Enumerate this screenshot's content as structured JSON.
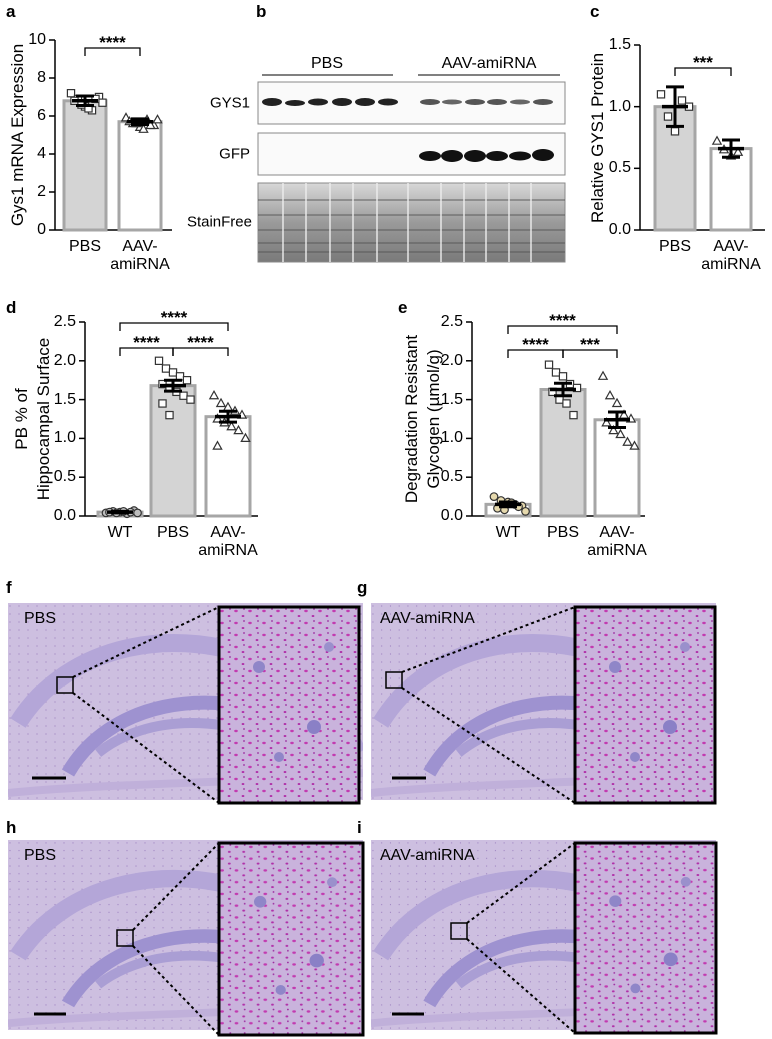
{
  "panels": [
    "a",
    "b",
    "c",
    "d",
    "e",
    "f",
    "g",
    "h",
    "i"
  ],
  "blot": {
    "groups": [
      "PBS",
      "AAV-amiRNA"
    ],
    "rows": [
      "GYS1",
      "GFP",
      "StainFree"
    ]
  },
  "image_labels": [
    "PBS",
    "AAV-amiRNA",
    "PBS",
    "AAV-amiRNA"
  ],
  "chart_data": [
    {
      "type": "bar",
      "ylabel": [
        "Gys1 mRNA Expression"
      ],
      "ylim": [
        0,
        10
      ],
      "yticks": [
        0,
        2,
        4,
        6,
        8,
        10
      ],
      "categories": [
        "PBS",
        "AAV-amiRNA"
      ],
      "values": [
        6.8,
        5.7
      ],
      "errors": [
        0.25,
        0.15
      ],
      "colors": [
        "#d4d4d4",
        "#ffffff"
      ],
      "edge_color": "#a6a6a6",
      "markers": [
        "square",
        "triangle"
      ],
      "point_fills": [
        "#ffffff",
        "#ffffff"
      ],
      "points": [
        [
          7.2,
          6.9,
          6.5,
          6.3,
          7.0,
          6.8,
          6.6,
          6.4,
          6.9,
          6.7
        ],
        [
          5.9,
          5.6,
          5.4,
          5.8,
          5.5,
          5.7,
          5.6,
          5.3,
          5.5,
          5.8
        ]
      ],
      "annotations": [
        "****"
      ]
    },
    {
      "type": "bar",
      "ylabel": [
        "Relative GYS1 Protein"
      ],
      "ylim": [
        0,
        1.5
      ],
      "yticks": [
        {
          "value": 0,
          "label": "0.0"
        },
        {
          "value": 0.5,
          "label": "0.5"
        },
        {
          "value": 1,
          "label": "1.0"
        },
        {
          "value": 1.5,
          "label": "1.5"
        }
      ],
      "categories": [
        "PBS",
        "AAV-amiRNA"
      ],
      "values": [
        1.0,
        0.66
      ],
      "errors": [
        0.16,
        0.07
      ],
      "colors": [
        "#d4d4d4",
        "#ffffff"
      ],
      "edge_color": "#a6a6a6",
      "markers": [
        "square",
        "triangle"
      ],
      "point_fills": [
        "#ffffff",
        "#ffffff"
      ],
      "points": [
        [
          1.1,
          0.92,
          0.8,
          1.05,
          1.0
        ],
        [
          0.72,
          0.65,
          0.6,
          0.63
        ]
      ],
      "annotations": [
        "***"
      ]
    },
    {
      "type": "bar",
      "ylabel": [
        "PB % of",
        "Hippocampal Surface"
      ],
      "ylim": [
        0,
        2.5
      ],
      "yticks": [
        {
          "value": 0,
          "label": "0.0"
        },
        {
          "value": 0.5,
          "label": "0.5"
        },
        {
          "value": 1,
          "label": "1.0"
        },
        {
          "value": 1.5,
          "label": "1.5"
        },
        {
          "value": 2,
          "label": "2.0"
        },
        {
          "value": 2.5,
          "label": "2.5"
        }
      ],
      "categories": [
        "WT",
        "PBS",
        "AAV-amiRNA"
      ],
      "values": [
        0.05,
        1.68,
        1.28
      ],
      "errors": [
        0.01,
        0.07,
        0.07
      ],
      "colors": [
        "#ffffff",
        "#d4d4d4",
        "#ffffff"
      ],
      "edge_color": "#a6a6a6",
      "markers": [
        "circle",
        "square",
        "triangle"
      ],
      "point_fills": [
        "#bdbdbd",
        "#ffffff",
        "#ffffff"
      ],
      "points": [
        [
          0.04,
          0.06,
          0.05,
          0.03,
          0.07,
          0.05,
          0.04,
          0.06,
          0.05,
          0.04
        ],
        [
          2.0,
          1.9,
          1.85,
          1.8,
          1.75,
          1.7,
          1.65,
          1.6,
          1.55,
          1.5,
          1.45,
          1.3
        ],
        [
          1.55,
          1.45,
          1.4,
          1.35,
          1.3,
          1.25,
          1.2,
          1.15,
          1.1,
          1.0,
          0.9
        ]
      ],
      "annotations": [
        "****",
        "****",
        "****"
      ]
    },
    {
      "type": "bar",
      "ylabel": [
        "Degradation Resistant",
        "Glycogen (µmol/g)"
      ],
      "ylim": [
        0,
        2.5
      ],
      "yticks": [
        {
          "value": 0,
          "label": "0.0"
        },
        {
          "value": 0.5,
          "label": "0.5"
        },
        {
          "value": 1,
          "label": "1.0"
        },
        {
          "value": 1.5,
          "label": "1.5"
        },
        {
          "value": 2,
          "label": "2.0"
        },
        {
          "value": 2.5,
          "label": "2.5"
        }
      ],
      "categories": [
        "WT",
        "PBS",
        "AAV-amiRNA"
      ],
      "values": [
        0.15,
        1.63,
        1.24
      ],
      "errors": [
        0.03,
        0.08,
        0.1
      ],
      "colors": [
        "#ffffff",
        "#d4d4d4",
        "#ffffff"
      ],
      "edge_color": "#a6a6a6",
      "markers": [
        "circle",
        "square",
        "triangle"
      ],
      "point_fills": [
        "#e6d9ad",
        "#ffffff",
        "#ffffff"
      ],
      "points": [
        [
          0.25,
          0.2,
          0.18,
          0.15,
          0.13,
          0.1,
          0.08,
          0.17,
          0.12,
          0.06
        ],
        [
          1.95,
          1.85,
          1.8,
          1.7,
          1.65,
          1.6,
          1.5,
          1.45,
          1.3
        ],
        [
          1.8,
          1.55,
          1.45,
          1.3,
          1.25,
          1.2,
          1.1,
          1.05,
          0.95,
          0.9
        ]
      ],
      "annotations": [
        "****",
        "****",
        "***"
      ]
    }
  ]
}
